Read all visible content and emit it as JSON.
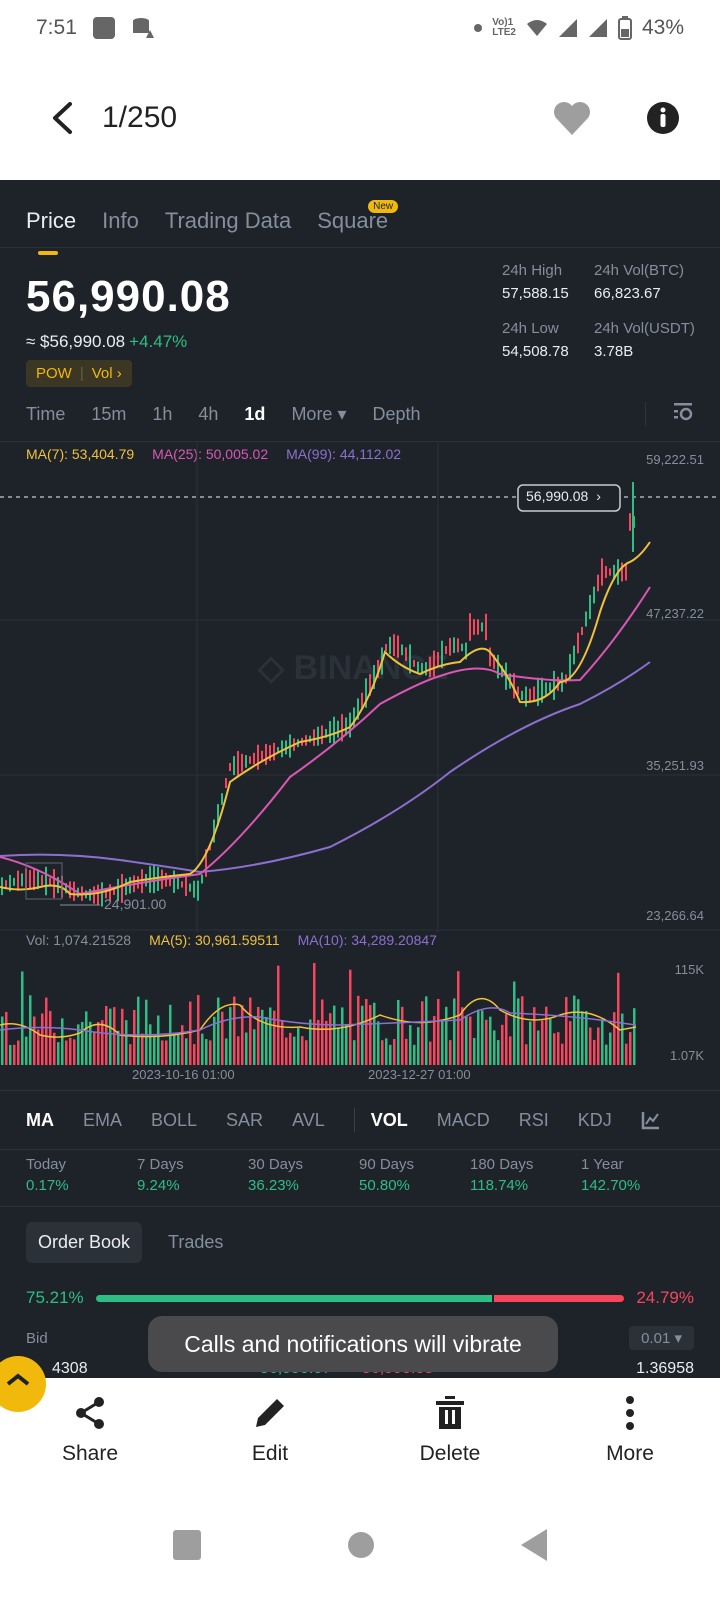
{
  "status_bar": {
    "time": "7:51",
    "network": "Vo) LTE2",
    "battery": "43%",
    "icons": [
      "app-notification-icon",
      "storage-warning-icon",
      "dot-icon",
      "volte-icon",
      "wifi-icon",
      "signal-icon",
      "signal-icon",
      "battery-icon"
    ]
  },
  "app_bar": {
    "title": "1/250",
    "icons": [
      "back-arrow-icon",
      "heart-icon",
      "info-icon"
    ]
  },
  "tabs": [
    {
      "label": "Price",
      "active": true
    },
    {
      "label": "Info",
      "active": false
    },
    {
      "label": "Trading Data",
      "active": false
    },
    {
      "label": "Square",
      "active": false,
      "badge": "New"
    }
  ],
  "price": {
    "last": "56,990.08",
    "fiat": "≈ $56,990.08",
    "change": "+4.47%",
    "tag1": "POW",
    "tag2": "Vol",
    "tag_chevron": "›"
  },
  "stats": {
    "high_label": "24h High",
    "high": "57,588.15",
    "vol_btc_label": "24h Vol(BTC)",
    "vol_btc": "66,823.67",
    "low_label": "24h Low",
    "low": "54,508.78",
    "vol_usdt_label": "24h Vol(USDT)",
    "vol_usdt": "3.78B"
  },
  "intervals": {
    "items": [
      "Time",
      "15m",
      "1h",
      "4h",
      "1d"
    ],
    "active": "1d",
    "more": "More ▾",
    "depth": "Depth"
  },
  "ma_legend": {
    "ma7": "MA(7): 53,404.79",
    "ma25": "MA(25): 50,005.02",
    "ma99": "MA(99): 44,112.02"
  },
  "chart": {
    "y_labels": [
      "59,222.51",
      "47,237.22",
      "35,251.93",
      "23,266.64"
    ],
    "last_price_tag": "56,990.08",
    "low_marker": "24,901.00",
    "watermark": "BINANCE",
    "colors": {
      "up": "#2ebd85",
      "down": "#f6465d",
      "ma7": "#f0c13c",
      "ma25": "#d957b5",
      "ma99": "#8d6fd1"
    }
  },
  "volume": {
    "vol": "Vol: 1,074.21528",
    "ma5": "MA(5): 30,961.59511",
    "ma10": "MA(10): 34,289.20847",
    "y_top": "115K",
    "y_bottom": "1.07K"
  },
  "x_dates": [
    "2023-10-16 01:00",
    "2023-12-27 01:00"
  ],
  "indicators": {
    "main": [
      "MA",
      "EMA",
      "BOLL",
      "SAR",
      "AVL"
    ],
    "sub": [
      "VOL",
      "MACD",
      "RSI",
      "KDJ"
    ],
    "active_main": "MA",
    "active_sub": "VOL"
  },
  "performance": [
    {
      "label": "Today",
      "value": "0.17%"
    },
    {
      "label": "7 Days",
      "value": "9.24%"
    },
    {
      "label": "30 Days",
      "value": "36.23%"
    },
    {
      "label": "90 Days",
      "value": "50.80%"
    },
    {
      "label": "180 Days",
      "value": "118.74%"
    },
    {
      "label": "1 Year",
      "value": "142.70%"
    }
  ],
  "order_book": {
    "tabs": [
      "Order Book",
      "Trades"
    ],
    "bid_pct": "75.21%",
    "ask_pct": "24.79%",
    "bid_label": "Bid",
    "step": "0.01",
    "row": {
      "bid_qty": "4308",
      "bid_price": "56,990.07",
      "ask_price": "56,990.08",
      "ask_qty": "1.36958"
    }
  },
  "toast": "Calls and notifications will vibrate",
  "bottom_actions": [
    {
      "label": "Share",
      "icon": "share-icon"
    },
    {
      "label": "Edit",
      "icon": "edit-pencil-icon"
    },
    {
      "label": "Delete",
      "icon": "trash-icon"
    },
    {
      "label": "More",
      "icon": "more-vertical-icon"
    }
  ],
  "nav": [
    "recents-icon",
    "home-icon",
    "back-icon"
  ]
}
